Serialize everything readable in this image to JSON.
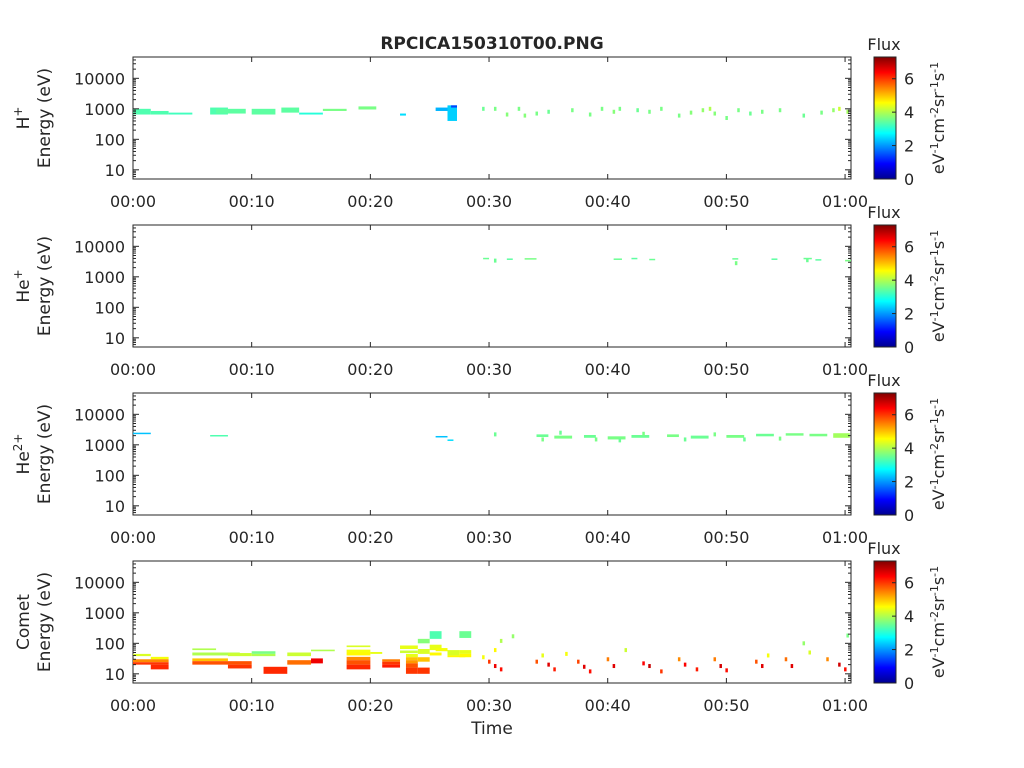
{
  "figure": {
    "title": "RPCICA150310T00.PNG"
  },
  "colorbar": {
    "label": "Flux",
    "unit_html": "eV<sup>-1</sup>cm<sup>-2</sup>sr<sup>-1</sup>s<sup>-1</sup>",
    "ticks": [
      "0",
      "2",
      "4",
      "6"
    ],
    "range": [
      0,
      7.3
    ],
    "colormap": "jet"
  },
  "chart_data": [
    {
      "type": "heatmap",
      "species": "H",
      "species_sup": "+",
      "ylabel": "Energy (eV)",
      "xlabel": "",
      "x_ticks": [
        "00:00",
        "00:10",
        "00:20",
        "00:30",
        "00:40",
        "00:50",
        "01:00"
      ],
      "y_ticks": [
        "10",
        "100",
        "1000",
        "10000"
      ],
      "xlim_min": [
        0,
        60.5
      ],
      "ylim_eV": [
        5,
        50000
      ],
      "y_scale": "log",
      "cells": [
        [
          0,
          1.5,
          650,
          1000,
          3.3
        ],
        [
          1.5,
          3,
          650,
          850,
          3.3
        ],
        [
          3,
          5,
          650,
          750,
          3.2
        ],
        [
          6.5,
          8,
          650,
          1100,
          3.3
        ],
        [
          7,
          9.5,
          700,
          1000,
          3.4
        ],
        [
          10,
          12,
          650,
          1000,
          3.4
        ],
        [
          12.5,
          14,
          750,
          1100,
          3.4
        ],
        [
          14,
          16,
          650,
          750,
          3.0
        ],
        [
          16,
          18,
          850,
          1000,
          3.6
        ],
        [
          19,
          20.5,
          950,
          1200,
          3.6
        ],
        [
          22.5,
          23,
          600,
          700,
          2.5
        ],
        [
          25.5,
          26.5,
          850,
          1100,
          2.2
        ],
        [
          26.5,
          27.3,
          400,
          1300,
          2.4
        ],
        [
          26.8,
          27.3,
          1100,
          1300,
          1.4
        ]
      ],
      "dots": [
        [
          29.5,
          1000,
          3.5
        ],
        [
          30.5,
          1000,
          3.6
        ],
        [
          31.5,
          650,
          3.7
        ],
        [
          32.5,
          1000,
          3.6
        ],
        [
          33,
          600,
          3.7
        ],
        [
          34,
          700,
          3.6
        ],
        [
          35,
          800,
          3.5
        ],
        [
          37,
          900,
          3.6
        ],
        [
          38.5,
          650,
          3.6
        ],
        [
          39.5,
          1000,
          3.6
        ],
        [
          40.5,
          800,
          3.7
        ],
        [
          41,
          1000,
          3.6
        ],
        [
          42.5,
          900,
          3.5
        ],
        [
          43.5,
          800,
          3.6
        ],
        [
          44.5,
          1000,
          3.6
        ],
        [
          46,
          600,
          3.6
        ],
        [
          47,
          750,
          3.7
        ],
        [
          48,
          900,
          3.8
        ],
        [
          48.6,
          1000,
          4.0
        ],
        [
          49,
          700,
          3.7
        ],
        [
          50,
          500,
          3.6
        ],
        [
          51,
          900,
          3.6
        ],
        [
          52,
          700,
          3.5
        ],
        [
          53,
          800,
          3.6
        ],
        [
          54.5,
          900,
          3.6
        ],
        [
          56.5,
          600,
          3.5
        ],
        [
          58,
          750,
          3.6
        ],
        [
          59,
          900,
          3.8
        ],
        [
          59.5,
          1000,
          4.2
        ],
        [
          60.2,
          800,
          3.9
        ]
      ]
    },
    {
      "type": "heatmap",
      "species": "He",
      "species_sup": "+",
      "ylabel": "Energy (eV)",
      "xlabel": "",
      "x_ticks": [
        "00:00",
        "00:10",
        "00:20",
        "00:30",
        "00:40",
        "00:50",
        "01:00"
      ],
      "y_ticks": [
        "10",
        "100",
        "1000",
        "10000"
      ],
      "xlim_min": [
        0,
        60.5
      ],
      "ylim_eV": [
        5,
        50000
      ],
      "y_scale": "log",
      "cells": [
        [
          29.5,
          30,
          3800,
          4200,
          3.5
        ],
        [
          31.5,
          32,
          3600,
          4000,
          3.4
        ],
        [
          33,
          34,
          3700,
          4100,
          3.6
        ],
        [
          40.5,
          41.2,
          3600,
          4000,
          3.5
        ],
        [
          42,
          42.5,
          3800,
          4200,
          3.4
        ],
        [
          43.5,
          44,
          3500,
          3900,
          3.5
        ],
        [
          50.5,
          51,
          3700,
          4100,
          3.5
        ],
        [
          53.8,
          54.3,
          3600,
          4000,
          3.4
        ],
        [
          56.5,
          57.2,
          3800,
          4200,
          3.5
        ],
        [
          57.5,
          58,
          3400,
          3800,
          3.4
        ],
        [
          60,
          60.5,
          3200,
          3600,
          3.6
        ]
      ],
      "dots": [
        [
          30.5,
          3400,
          3.5
        ],
        [
          50.8,
          2800,
          3.6
        ],
        [
          56.8,
          3500,
          3.5
        ]
      ]
    },
    {
      "type": "heatmap",
      "species": "He",
      "species_sup": "2+",
      "ylabel": "Energy (eV)",
      "xlabel": "",
      "x_ticks": [
        "00:00",
        "00:10",
        "00:20",
        "00:30",
        "00:40",
        "00:50",
        "01:00"
      ],
      "y_ticks": [
        "10",
        "100",
        "1000",
        "10000"
      ],
      "xlim_min": [
        0,
        60.5
      ],
      "ylim_eV": [
        5,
        50000
      ],
      "y_scale": "log",
      "cells": [
        [
          0,
          1.5,
          2300,
          2500,
          2.3
        ],
        [
          6.5,
          8,
          1900,
          2100,
          3.3
        ],
        [
          25.5,
          26.5,
          1750,
          1950,
          2.3
        ],
        [
          26.5,
          27,
          1350,
          1500,
          2.5
        ],
        [
          34,
          35,
          1800,
          2200,
          3.5
        ],
        [
          35.5,
          37,
          1600,
          2000,
          3.6
        ],
        [
          38,
          39,
          1700,
          2100,
          3.5
        ],
        [
          40,
          41.5,
          1500,
          1900,
          3.6
        ],
        [
          42,
          43.5,
          1700,
          2100,
          3.5
        ],
        [
          45,
          46,
          1800,
          2200,
          3.6
        ],
        [
          47,
          48.5,
          1600,
          2000,
          3.5
        ],
        [
          50,
          51.5,
          1700,
          2100,
          3.6
        ],
        [
          52.5,
          54,
          1900,
          2300,
          3.5
        ],
        [
          55,
          56.5,
          2000,
          2400,
          3.6
        ],
        [
          57,
          58.5,
          1900,
          2300,
          3.6
        ],
        [
          59,
          60.4,
          1700,
          2400,
          3.9
        ]
      ],
      "dots": [
        [
          30.5,
          2200,
          3.5
        ],
        [
          34.5,
          1500,
          3.6
        ],
        [
          36,
          2500,
          3.5
        ],
        [
          39,
          1500,
          3.6
        ],
        [
          41,
          1400,
          3.5
        ],
        [
          43,
          2300,
          3.6
        ],
        [
          46.5,
          1500,
          3.5
        ],
        [
          49,
          2200,
          3.6
        ],
        [
          51.5,
          1500,
          3.5
        ],
        [
          54.5,
          1600,
          3.6
        ]
      ]
    },
    {
      "type": "heatmap",
      "species": "Comet",
      "species_sup": "",
      "ylabel": "Energy (eV)",
      "xlabel": "Time",
      "x_ticks": [
        "00:00",
        "00:10",
        "00:20",
        "00:30",
        "00:40",
        "00:50",
        "01:00"
      ],
      "y_ticks": [
        "10",
        "100",
        "1000",
        "10000"
      ],
      "xlim_min": [
        0,
        60.5
      ],
      "ylim_eV": [
        5,
        50000
      ],
      "y_scale": "log",
      "cells": [
        [
          0,
          1.5,
          38,
          45,
          4.3
        ],
        [
          1.5,
          3,
          30,
          36,
          4.5
        ],
        [
          0,
          3,
          24,
          30,
          5.4
        ],
        [
          0,
          3,
          20,
          24,
          6.0
        ],
        [
          1.5,
          3,
          14,
          20,
          6.1
        ],
        [
          5,
          7,
          60,
          68,
          4.0
        ],
        [
          5,
          9,
          40,
          50,
          4.0
        ],
        [
          5,
          8,
          26,
          32,
          5.0
        ],
        [
          5,
          10,
          20,
          26,
          5.8
        ],
        [
          8,
          10,
          15,
          20,
          6.0
        ],
        [
          8,
          10,
          38,
          48,
          4.2
        ],
        [
          10,
          12,
          45,
          55,
          3.6
        ],
        [
          10,
          12,
          38,
          45,
          4.0
        ],
        [
          11,
          13,
          10,
          17,
          6.1
        ],
        [
          13,
          15,
          38,
          50,
          4.2
        ],
        [
          13,
          15,
          20,
          28,
          5.6
        ],
        [
          15,
          16,
          22,
          32,
          6.5
        ],
        [
          15,
          17,
          55,
          62,
          4.0
        ],
        [
          18,
          20,
          75,
          85,
          4.3
        ],
        [
          18,
          20,
          50,
          62,
          4.5
        ],
        [
          18,
          20,
          40,
          50,
          4.6
        ],
        [
          18,
          20,
          28,
          36,
          5.4
        ],
        [
          18,
          20,
          20,
          28,
          5.8
        ],
        [
          18,
          20,
          14,
          20,
          6.1
        ],
        [
          20,
          21,
          45,
          52,
          4.4
        ],
        [
          21,
          22.5,
          25,
          30,
          5.5
        ],
        [
          21,
          22.5,
          20,
          25,
          6.0
        ],
        [
          21,
          22.5,
          16,
          20,
          6.2
        ],
        [
          22.5,
          24,
          65,
          85,
          4.4
        ],
        [
          22.5,
          24,
          48,
          58,
          4.2
        ],
        [
          23,
          24,
          35,
          45,
          4.4
        ],
        [
          23,
          24,
          28,
          35,
          5.0
        ],
        [
          23,
          24,
          22,
          28,
          5.3
        ],
        [
          23,
          24,
          16,
          22,
          5.8
        ],
        [
          23,
          24,
          10,
          16,
          6.0
        ],
        [
          24,
          25,
          100,
          140,
          3.7
        ],
        [
          24,
          25,
          45,
          65,
          4.3
        ],
        [
          24,
          25,
          25,
          35,
          5.0
        ],
        [
          24,
          25,
          10,
          16,
          6.0
        ],
        [
          25,
          26,
          140,
          250,
          3.3
        ],
        [
          25,
          26,
          60,
          90,
          4.4
        ],
        [
          25,
          26,
          40,
          50,
          4.6
        ],
        [
          25.5,
          26.5,
          55,
          70,
          4.5
        ],
        [
          26.5,
          27.5,
          40,
          60,
          4.3
        ],
        [
          26.5,
          28,
          35,
          40,
          4.6
        ],
        [
          27.5,
          28.5,
          150,
          250,
          3.5
        ],
        [
          27.5,
          28.5,
          45,
          60,
          4.4
        ],
        [
          27.5,
          28.5,
          35,
          45,
          4.6
        ]
      ],
      "dots": [
        [
          29.5,
          35,
          4.5
        ],
        [
          30,
          25,
          6.0
        ],
        [
          30.5,
          18,
          6.5
        ],
        [
          31,
          14,
          6.3
        ],
        [
          30.5,
          60,
          4.6
        ],
        [
          32,
          170,
          3.8
        ],
        [
          31,
          120,
          4.0
        ],
        [
          34.5,
          40,
          4.4
        ],
        [
          34,
          25,
          5.8
        ],
        [
          35,
          20,
          6.6
        ],
        [
          35.5,
          14,
          6.2
        ],
        [
          36.5,
          45,
          4.5
        ],
        [
          37.5,
          25,
          5.9
        ],
        [
          38,
          17,
          6.6
        ],
        [
          38.5,
          12,
          6.3
        ],
        [
          40,
          30,
          5.5
        ],
        [
          40.5,
          18,
          6.6
        ],
        [
          41.5,
          60,
          4.2
        ],
        [
          43,
          22,
          6.4
        ],
        [
          43.5,
          18,
          6.8
        ],
        [
          44.5,
          12,
          6.0
        ],
        [
          46,
          30,
          5.4
        ],
        [
          46.5,
          20,
          6.4
        ],
        [
          47.5,
          14,
          6.2
        ],
        [
          49,
          30,
          5.5
        ],
        [
          49.5,
          18,
          6.7
        ],
        [
          50,
          13,
          6.3
        ],
        [
          52.5,
          25,
          5.8
        ],
        [
          53,
          18,
          6.6
        ],
        [
          53.5,
          40,
          4.5
        ],
        [
          55,
          30,
          5.6
        ],
        [
          55.5,
          18,
          6.6
        ],
        [
          56.5,
          100,
          3.8
        ],
        [
          57,
          50,
          4.3
        ],
        [
          58.5,
          30,
          5.4
        ],
        [
          59.5,
          20,
          6.7
        ],
        [
          60,
          14,
          6.3
        ],
        [
          60.2,
          180,
          3.6
        ]
      ]
    }
  ]
}
